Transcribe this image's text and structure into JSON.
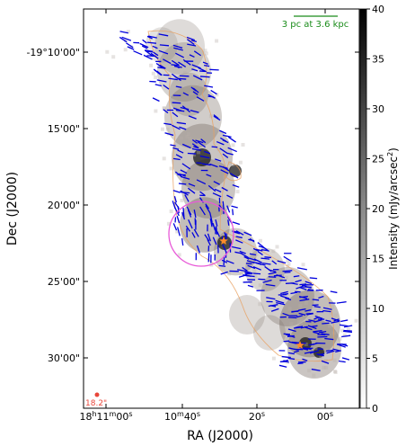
{
  "chart_data": {
    "type": "heatmap",
    "title": "",
    "xlabel": "RA (J2000)",
    "ylabel": "Dec (J2000)",
    "x_ticks": [
      {
        "id": "ra_11m00",
        "label_prefix": "18",
        "label_h": "h",
        "label_mid": "11",
        "label_m": "m",
        "label_rest": "00",
        "label_s": "s"
      },
      {
        "id": "ra_10m40",
        "label_prefix": "10",
        "label_m": "m",
        "label_rest": "40",
        "label_s": "s"
      },
      {
        "id": "ra_20s",
        "label_prefix": "20",
        "label_s": "s"
      },
      {
        "id": "ra_00s",
        "label_prefix": "00",
        "label_s": "s"
      }
    ],
    "y_ticks": [
      "-19°10'00\"",
      "15'00\"",
      "20'00\"",
      "25'00\"",
      "30'00\""
    ],
    "colorbar": {
      "label": "Intensity (mJy/arcsec",
      "label_sup": "2",
      "label_close": ")",
      "ticks": [
        0,
        5,
        10,
        15,
        20,
        25,
        30,
        35,
        40
      ],
      "range": [
        0,
        40
      ],
      "colormap": "grayscale"
    },
    "scale_bar": {
      "label": "3 pc at 3.6 kpc",
      "color": "#1a8c1a"
    },
    "beam": {
      "label": "18.2\"",
      "color": "#e8463a"
    },
    "markers": [
      {
        "type": "star",
        "color": "#ff8c2a"
      },
      {
        "type": "star",
        "color": "#ff8c2a"
      }
    ],
    "circle": {
      "color": "#e85ad8"
    },
    "contour_color": "#e8a060",
    "vector_color": "#0000dd"
  }
}
